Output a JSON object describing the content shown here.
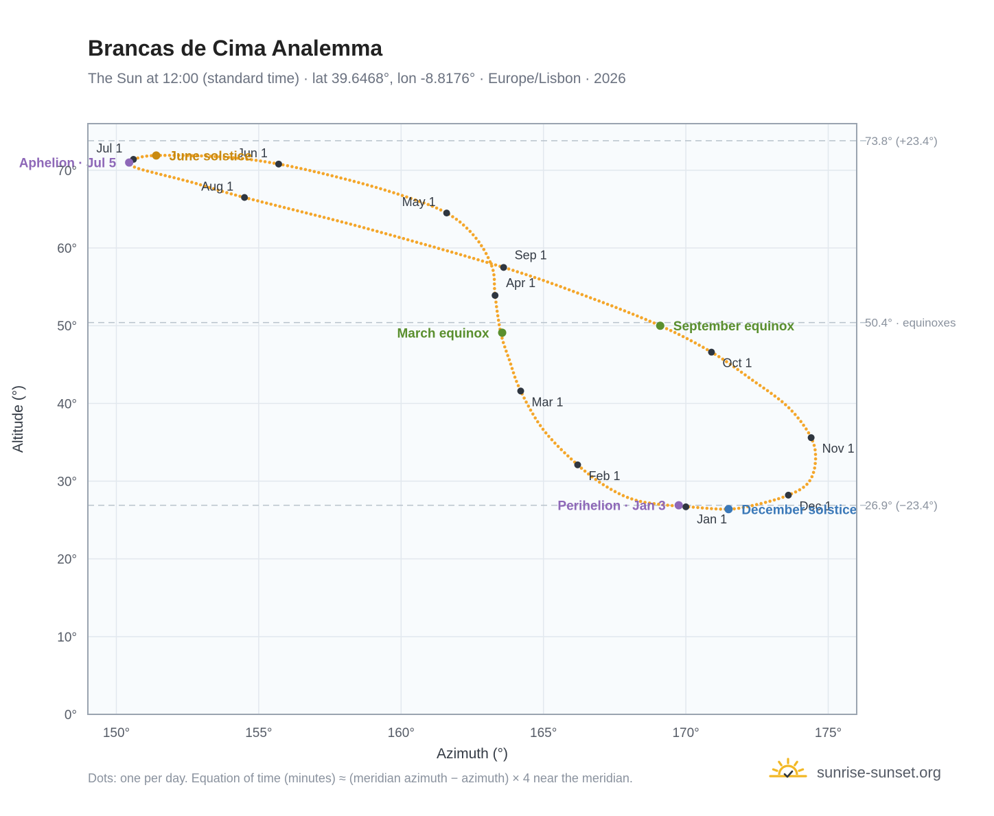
{
  "title": "Brancas de Cima Analemma",
  "subtitle": "The Sun at 12:00 (standard time) · lat 39.6468°, lon -8.8176° · Europe/Lisbon · 2026",
  "footnote": "Dots: one per day. Equation of time (minutes) ≈ (meridian azimuth − azimuth) × 4 near the meridian.",
  "brand": "sunrise-sunset.org",
  "colors": {
    "curve": "#f4a62a",
    "month_marker": "#2f3640",
    "equinox": "#5a8f2e",
    "june_solstice": "#c98a10",
    "december_solstice": "#3a78b8",
    "apsis": "#8e68b8",
    "plot_bg": "#f8fbfd",
    "grid": "#e2e8ee",
    "ref_line": "#b8c2cc",
    "axis_text": "#555b66",
    "ref_text": "#8a929e",
    "logo": "#f2b825"
  },
  "chart_data": {
    "type": "scatter",
    "xlabel": "Azimuth (°)",
    "ylabel": "Altitude (°)",
    "xlim": [
      149,
      176
    ],
    "ylim": [
      0,
      76
    ],
    "xticks": [
      150,
      155,
      160,
      165,
      170,
      175
    ],
    "yticks": [
      0,
      10,
      20,
      30,
      40,
      50,
      60,
      70
    ],
    "xtick_labels": [
      "150°",
      "155°",
      "160°",
      "165°",
      "170°",
      "175°"
    ],
    "ytick_labels": [
      "0°",
      "10°",
      "20°",
      "30°",
      "40°",
      "50°",
      "60°",
      "70°"
    ],
    "grid": true,
    "daily_path": [
      {
        "date": "Jan 1",
        "x": 170.0,
        "y": 26.7
      },
      {
        "date": "Jan 10",
        "x": 168.4,
        "y": 27.4
      },
      {
        "date": "Jan 20",
        "x": 167.3,
        "y": 29.1
      },
      {
        "date": "Feb 1",
        "x": 166.2,
        "y": 32.1
      },
      {
        "date": "Feb 15",
        "x": 165.0,
        "y": 36.6
      },
      {
        "date": "Mar 1",
        "x": 164.2,
        "y": 41.6
      },
      {
        "date": "Mar 10",
        "x": 163.8,
        "y": 45.6
      },
      {
        "date": "Mar 20",
        "x": 163.5,
        "y": 49.1
      },
      {
        "date": "Apr 1",
        "x": 163.3,
        "y": 53.9
      },
      {
        "date": "Apr 10",
        "x": 163.2,
        "y": 57.5
      },
      {
        "date": "Apr 20",
        "x": 162.6,
        "y": 61.4
      },
      {
        "date": "May 1",
        "x": 161.6,
        "y": 64.5
      },
      {
        "date": "May 10",
        "x": 160.0,
        "y": 66.8
      },
      {
        "date": "May 20",
        "x": 158.0,
        "y": 68.9
      },
      {
        "date": "Jun 1",
        "x": 155.7,
        "y": 70.8
      },
      {
        "date": "Jun 10",
        "x": 153.8,
        "y": 71.7
      },
      {
        "date": "Jun 21",
        "x": 151.4,
        "y": 71.9
      },
      {
        "date": "Jul 1",
        "x": 150.6,
        "y": 71.4
      },
      {
        "date": "Jul 5",
        "x": 150.45,
        "y": 71.0
      },
      {
        "date": "Jul 10",
        "x": 150.8,
        "y": 70.2
      },
      {
        "date": "Jul 20",
        "x": 152.6,
        "y": 68.5
      },
      {
        "date": "Aug 1",
        "x": 154.5,
        "y": 66.5
      },
      {
        "date": "Aug 15",
        "x": 158.7,
        "y": 62.6
      },
      {
        "date": "Sep 1",
        "x": 163.6,
        "y": 57.5
      },
      {
        "date": "Sep 10",
        "x": 166.5,
        "y": 53.8
      },
      {
        "date": "Sep 22",
        "x": 169.1,
        "y": 50.0
      },
      {
        "date": "Oct 1",
        "x": 170.9,
        "y": 46.6
      },
      {
        "date": "Oct 10",
        "x": 172.3,
        "y": 43.1
      },
      {
        "date": "Oct 20",
        "x": 173.6,
        "y": 39.5
      },
      {
        "date": "Nov 1",
        "x": 174.4,
        "y": 35.6
      },
      {
        "date": "Nov 10",
        "x": 174.55,
        "y": 32.5
      },
      {
        "date": "Nov 20",
        "x": 174.3,
        "y": 29.8
      },
      {
        "date": "Dec 1",
        "x": 173.6,
        "y": 28.2
      },
      {
        "date": "Dec 10",
        "x": 172.5,
        "y": 27.0
      },
      {
        "date": "Dec 21",
        "x": 171.5,
        "y": 26.4
      },
      {
        "date": "Dec 31",
        "x": 170.1,
        "y": 26.7
      }
    ],
    "month_markers": [
      {
        "label": "Jan 1",
        "x": 170.0,
        "y": 26.7,
        "pos": "below"
      },
      {
        "label": "Feb 1",
        "x": 166.2,
        "y": 32.1,
        "pos": "below-right"
      },
      {
        "label": "Mar 1",
        "x": 164.2,
        "y": 41.6,
        "pos": "below-right"
      },
      {
        "label": "Apr 1",
        "x": 163.3,
        "y": 53.9,
        "pos": "above-right"
      },
      {
        "label": "May 1",
        "x": 161.6,
        "y": 64.5,
        "pos": "above-left"
      },
      {
        "label": "Jun 1",
        "x": 155.7,
        "y": 70.8,
        "pos": "above-left"
      },
      {
        "label": "Jul 1",
        "x": 150.6,
        "y": 71.4,
        "pos": "above-left"
      },
      {
        "label": "Aug 1",
        "x": 154.5,
        "y": 66.5,
        "pos": "above-left"
      },
      {
        "label": "Sep 1",
        "x": 163.6,
        "y": 57.5,
        "pos": "above-right"
      },
      {
        "label": "Oct 1",
        "x": 170.9,
        "y": 46.6,
        "pos": "below-right"
      },
      {
        "label": "Nov 1",
        "x": 174.4,
        "y": 35.6,
        "pos": "below-right"
      },
      {
        "label": "Dec 1",
        "x": 173.6,
        "y": 28.2,
        "pos": "below-right"
      }
    ],
    "events": [
      {
        "label": "March equinox",
        "x": 163.55,
        "y": 49.1,
        "color_key": "equinox",
        "pos": "left"
      },
      {
        "label": "September equinox",
        "x": 169.1,
        "y": 50.0,
        "color_key": "equinox",
        "pos": "right"
      },
      {
        "label": "June solstice",
        "x": 151.4,
        "y": 71.9,
        "color_key": "june_solstice",
        "pos": "right"
      },
      {
        "label": "December solstice",
        "x": 171.5,
        "y": 26.4,
        "color_key": "december_solstice",
        "pos": "right"
      },
      {
        "label": "Aphelion · Jul 5",
        "x": 150.45,
        "y": 71.0,
        "color_key": "apsis",
        "pos": "left"
      },
      {
        "label": "Perihelion · Jan 3",
        "x": 169.75,
        "y": 26.9,
        "color_key": "apsis",
        "pos": "left"
      }
    ],
    "reference_lines": [
      {
        "y": 73.8,
        "label": "73.8° (+23.4°)"
      },
      {
        "y": 50.4,
        "label": "50.4° · equinoxes"
      },
      {
        "y": 26.9,
        "label": "26.9° (−23.4°)"
      }
    ]
  }
}
